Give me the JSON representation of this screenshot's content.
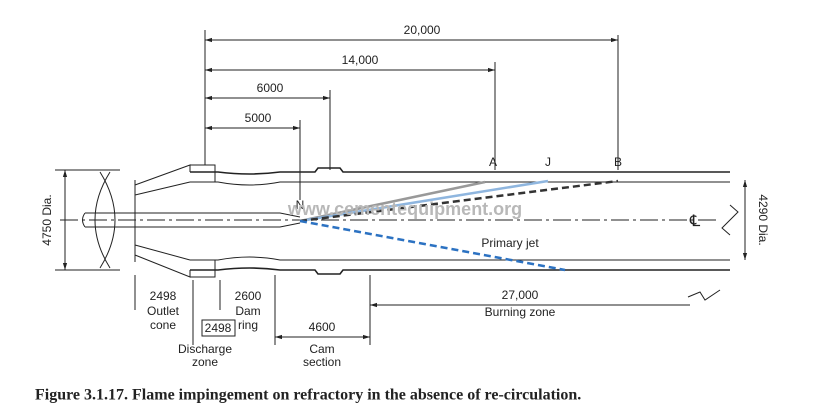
{
  "dimensions_top": [
    "20,000",
    "14,000",
    "6000",
    "5000"
  ],
  "points": [
    "A",
    "J",
    "B",
    "N"
  ],
  "watermark": "www.cementequipment.org",
  "diameters": [
    "4750 Dia.",
    "4290 Dia."
  ],
  "centerline": "℄",
  "jet_label": "Primary jet",
  "zones": [
    {
      "length": "2498",
      "name": [
        "Outlet",
        "cone"
      ]
    },
    {
      "length": "2498",
      "name": [
        "Discharge",
        "zone"
      ]
    },
    {
      "length": "2600",
      "name": [
        "Dam",
        "ring"
      ]
    },
    {
      "length": "4600",
      "name": [
        "Cam",
        "section"
      ]
    },
    {
      "length": "27,000",
      "name": [
        "Burning zone"
      ]
    }
  ],
  "caption": "Figure 3.1.17. Flame impingement on refractory in the absence of re-circulation."
}
